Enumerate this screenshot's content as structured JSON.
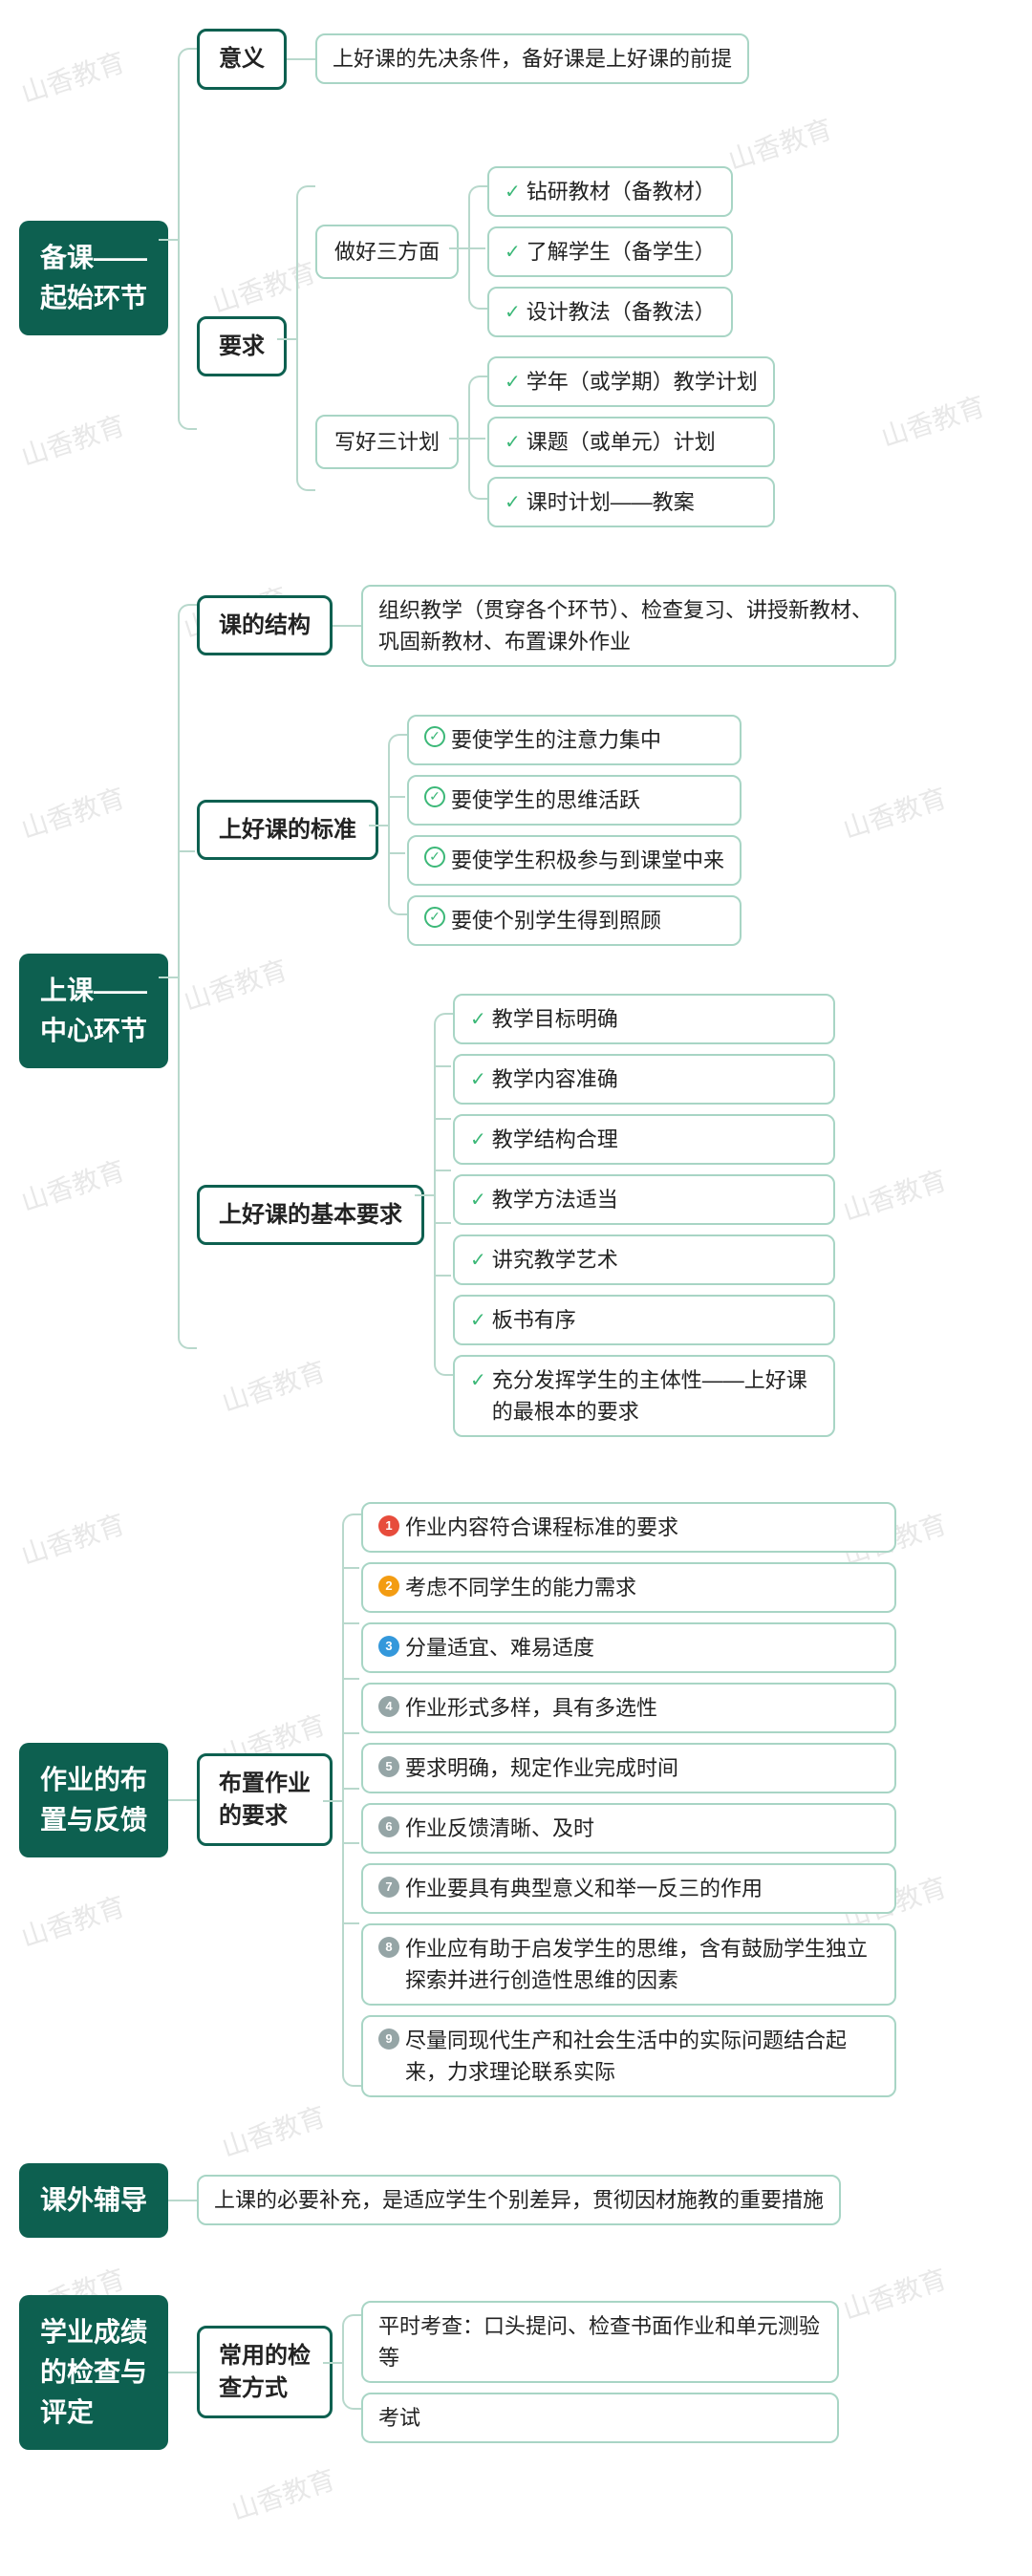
{
  "watermark_text": "山香教育",
  "watermark_color": "#e8e8e8",
  "colors": {
    "root_bg": "#0d6050",
    "root_text": "#ffffff",
    "l2_border": "#0d6050",
    "leaf_border": "#a8d5c5",
    "connector": "#b8d8cc",
    "check_green": "#3cb878",
    "text": "#222222",
    "bg": "#ffffff"
  },
  "typography": {
    "root_fontsize": 28,
    "l2_fontsize": 24,
    "leaf_fontsize": 22,
    "root_weight": 700,
    "l2_weight": 700
  },
  "badge_colors": [
    "#e74c3c",
    "#f39c12",
    "#3498db",
    "#95a5a6",
    "#95a5a6",
    "#95a5a6",
    "#95a5a6",
    "#95a5a6",
    "#95a5a6"
  ],
  "sections": {
    "s1": {
      "root": "备课——\n起始环节",
      "l2a": "意义",
      "l2a_leaf": "上好课的先决条件，备好课是上好课的前提",
      "l2b": "要求",
      "l2b_sub1": "做好三方面",
      "l2b_sub1_items": [
        "钻研教材（备教材）",
        "了解学生（备学生）",
        "设计教法（备教法）"
      ],
      "l2b_sub2": "写好三计划",
      "l2b_sub2_items": [
        "学年（或学期）教学计划",
        "课题（或单元）计划",
        "课时计划——教案"
      ]
    },
    "s2": {
      "root": "上课——\n中心环节",
      "l2a": "课的结构",
      "l2a_leaf": "组织教学（贯穿各个环节）、检查复习、讲授新教材、巩固新教材、布置课外作业",
      "l2b": "上好课的标准",
      "l2b_items": [
        "要使学生的注意力集中",
        "要使学生的思维活跃",
        "要使学生积极参与到课堂中来",
        "要使个别学生得到照顾"
      ],
      "l2c": "上好课的基本要求",
      "l2c_items": [
        "教学目标明确",
        "教学内容准确",
        "教学结构合理",
        "教学方法适当",
        "讲究教学艺术",
        "板书有序",
        "充分发挥学生的主体性——上好课的最根本的要求"
      ]
    },
    "s3": {
      "root": "作业的布\n置与反馈",
      "l2": "布置作业\n的要求",
      "items": [
        "作业内容符合课程标准的要求",
        "考虑不同学生的能力需求",
        "分量适宜、难易适度",
        "作业形式多样，具有多选性",
        "要求明确，规定作业完成时间",
        "作业反馈清晰、及时",
        "作业要具有典型意义和举一反三的作用",
        "作业应有助于启发学生的思维，含有鼓励学生独立探索并进行创造性思维的因素",
        "尽量同现代生产和社会生活中的实际问题结合起来，力求理论联系实际"
      ]
    },
    "s4": {
      "root": "课外辅导",
      "leaf": "上课的必要补充，是适应学生个别差异，贯彻因材施教的重要措施"
    },
    "s5": {
      "root": "学业成绩\n的检查与\n评定",
      "l2": "常用的检\n查方式",
      "item1": "平时考查：口头提问、检查书面作业和单元测验等",
      "item2": "考试"
    }
  }
}
